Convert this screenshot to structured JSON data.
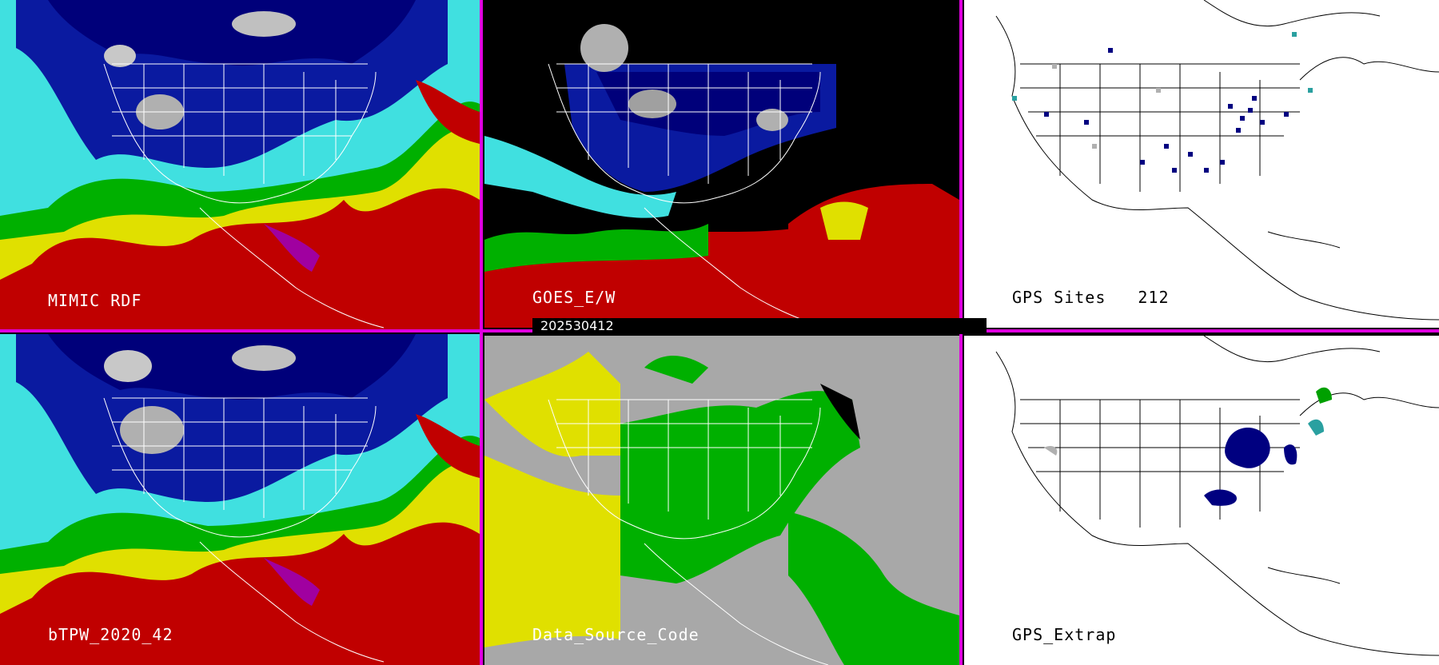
{
  "timestamp": "202530412",
  "panels": [
    {
      "id": "mimic",
      "label": "MIMIC RDF"
    },
    {
      "id": "goes",
      "label": "GOES_E/W"
    },
    {
      "id": "gps_sites",
      "label": "GPS Sites",
      "count": "212"
    },
    {
      "id": "btpw",
      "label": "bTPW_2020_42"
    },
    {
      "id": "data_source",
      "label": "Data_Source_Code"
    },
    {
      "id": "gps_extrap",
      "label": "GPS_Extrap"
    }
  ],
  "colors": {
    "separator": "#e000e0",
    "very_dry": "#a0a0a0",
    "dry": "#000090",
    "moist": "#2020d0",
    "moderate": "#40e0e0",
    "humid": "#00c000",
    "very_humid": "#e0e000",
    "saturated": "#d00000",
    "extreme": "#a000a0",
    "source_yellow": "#e0e000",
    "source_green": "#00c000",
    "source_gray": "#a8a8a8"
  }
}
